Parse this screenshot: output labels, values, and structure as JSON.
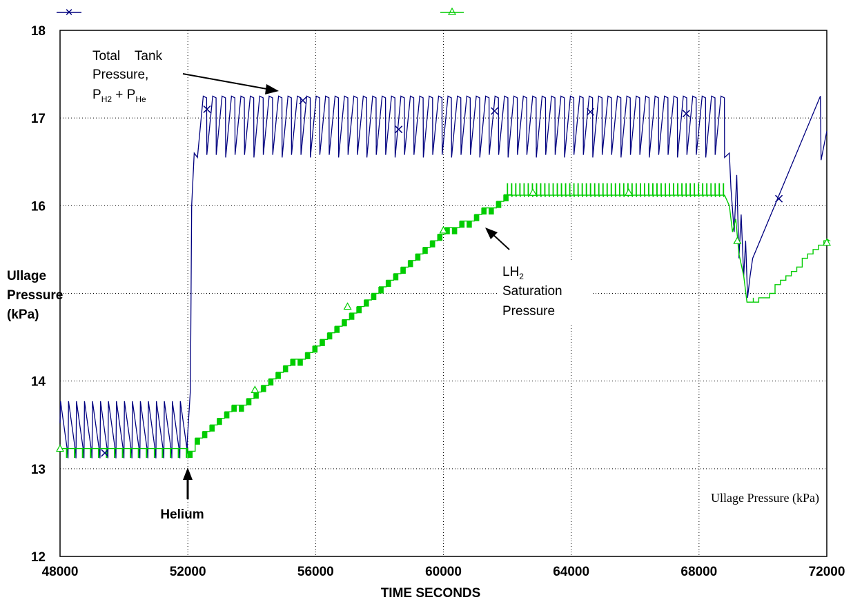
{
  "chart_data": {
    "type": "line",
    "xlabel": "TIME  SECONDS",
    "ylabel": [
      "Ullage",
      "Pressure",
      "(kPa)"
    ],
    "xlim": [
      48000,
      72000
    ],
    "ylim": [
      12,
      18
    ],
    "xticks": [
      "48000",
      "52000",
      "56000",
      "60000",
      "64000",
      "68000",
      "72000"
    ],
    "yticks": [
      "12",
      "13",
      "14",
      "16",
      "17",
      "18"
    ],
    "legend_position": "top",
    "grid": "dotted",
    "series": [
      {
        "color": "#00007f",
        "marker": "x",
        "x": [
          48000,
          49400,
          52000,
          52300,
          56000,
          60000,
          64000,
          68000,
          68800,
          69000,
          69500,
          69700,
          70400,
          71800,
          71850,
          72000
        ],
        "y": [
          13.55,
          13.2,
          13.3,
          16.6,
          16.9,
          16.9,
          16.9,
          16.9,
          16.9,
          16.2,
          14.95,
          15.4,
          16.1,
          17.25,
          16.55,
          16.85
        ],
        "sawtooth_cycles": [
          {
            "x_start": 48000,
            "x_end": 52000,
            "low": 13.12,
            "high": 13.77
          },
          {
            "x_start": 52300,
            "x_end": 68800,
            "low": 16.55,
            "high": 17.25
          }
        ],
        "marker_points": [
          [
            49400,
            13.18
          ],
          [
            52600,
            17.1
          ],
          [
            55600,
            17.2
          ],
          [
            58600,
            16.87
          ],
          [
            61600,
            17.08
          ],
          [
            64600,
            17.07
          ],
          [
            67600,
            17.05
          ],
          [
            70500,
            16.08
          ]
        ]
      },
      {
        "color": "#00cc00",
        "marker": "triangle",
        "x": [
          48000,
          52000,
          52500,
          54000,
          56000,
          58000,
          60000,
          61000,
          62000,
          64000,
          66000,
          68800,
          69200,
          69600,
          70000,
          71000,
          72000
        ],
        "y": [
          13.23,
          13.23,
          13.47,
          13.85,
          14.45,
          15.1,
          15.72,
          15.9,
          16.12,
          16.12,
          16.12,
          16.12,
          15.6,
          14.9,
          14.95,
          15.3,
          15.65
        ],
        "marker_points": [
          [
            48000,
            13.23
          ],
          [
            54100,
            13.9
          ],
          [
            57000,
            14.85
          ],
          [
            60000,
            15.72
          ],
          [
            62800,
            16.15
          ],
          [
            65800,
            16.15
          ],
          [
            69200,
            15.6
          ],
          [
            72000,
            15.58
          ]
        ]
      }
    ],
    "annotations": {
      "total_tank": [
        "Total    Tank",
        "Pressure,"
      ],
      "total_tank_formula": {
        "p1": "P",
        "s1": "H2",
        "mid": " + P",
        "s2": "He"
      },
      "lh2": {
        "base": "LH",
        "sub": "2",
        "lines": [
          "Saturation",
          "Pressure"
        ]
      },
      "helium": "Helium",
      "bottom_note": "Ullage Pressure (kPa)"
    }
  }
}
